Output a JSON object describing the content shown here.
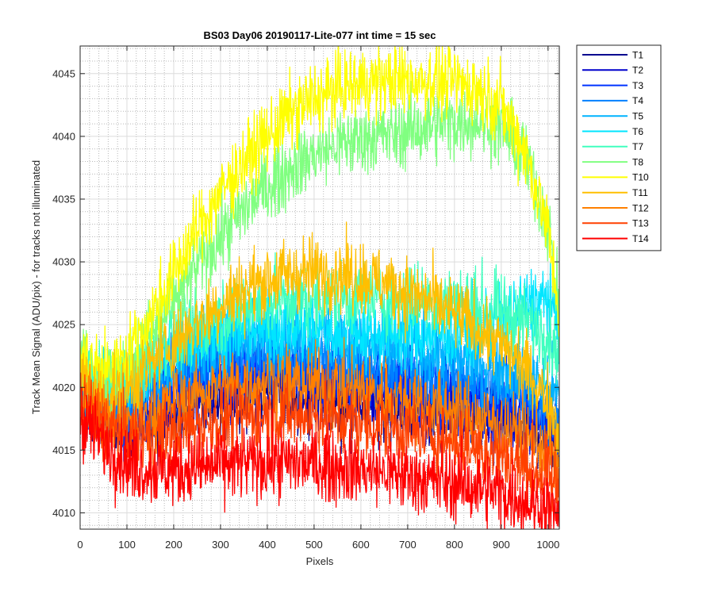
{
  "chart_data": {
    "type": "line",
    "title": "BS03 Day06 20190117-Lite-077 int time = 15 sec",
    "xlabel": "Pixels",
    "ylabel": "Track Mean Signal (ADU/pix) - for tracks not illuminated",
    "xlim": [
      0,
      1024
    ],
    "ylim": [
      4008.7,
      4047.2
    ],
    "xticks": [
      0,
      100,
      200,
      300,
      400,
      500,
      600,
      700,
      800,
      900,
      1000
    ],
    "yticks": [
      4010,
      4015,
      4020,
      4025,
      4030,
      4035,
      4040,
      4045
    ],
    "grid": true,
    "legend_position": "outside-top-right",
    "x_profile": [
      0,
      50,
      100,
      150,
      200,
      250,
      300,
      350,
      400,
      450,
      500,
      550,
      600,
      650,
      700,
      750,
      800,
      850,
      900,
      950,
      1000,
      1024
    ],
    "series": [
      {
        "name": "T1",
        "color": "#00008f",
        "noise": 2.6,
        "values": [
          4019.5,
          4017.8,
          4016.9,
          4017.2,
          4017.9,
          4018.6,
          4019.2,
          4019.5,
          4019.5,
          4019.4,
          4019.2,
          4019.0,
          4018.8,
          4018.6,
          4018.4,
          4018.2,
          4018.0,
          4017.7,
          4017.3,
          4016.8,
          4016.0,
          4015.2
        ]
      },
      {
        "name": "T2",
        "color": "#0000cc",
        "noise": 2.6,
        "values": [
          4019.8,
          4018.0,
          4017.3,
          4018.0,
          4019.0,
          4019.8,
          4020.3,
          4020.5,
          4020.5,
          4020.3,
          4020.1,
          4019.9,
          4019.7,
          4019.5,
          4019.2,
          4019.0,
          4018.7,
          4018.4,
          4018.0,
          4017.4,
          4016.6,
          4015.8
        ]
      },
      {
        "name": "T3",
        "color": "#0033ff",
        "noise": 2.6,
        "values": [
          4020.0,
          4018.3,
          4017.8,
          4019.0,
          4020.2,
          4021.0,
          4021.4,
          4021.6,
          4021.6,
          4021.4,
          4021.2,
          4021.0,
          4020.8,
          4020.5,
          4020.2,
          4019.9,
          4019.6,
          4019.3,
          4018.9,
          4018.2,
          4017.3,
          4016.5
        ]
      },
      {
        "name": "T4",
        "color": "#0080ff",
        "noise": 2.6,
        "values": [
          4020.3,
          4018.8,
          4018.5,
          4019.8,
          4021.0,
          4021.8,
          4022.3,
          4022.5,
          4022.5,
          4022.4,
          4022.2,
          4022.0,
          4021.8,
          4021.6,
          4021.3,
          4021.0,
          4020.7,
          4020.4,
          4020.0,
          4019.4,
          4018.5,
          4017.7
        ]
      },
      {
        "name": "T5",
        "color": "#00b3ff",
        "noise": 2.6,
        "values": [
          4020.6,
          4019.3,
          4019.5,
          4021.0,
          4022.3,
          4023.2,
          4023.8,
          4024.1,
          4024.2,
          4024.1,
          4023.9,
          4023.7,
          4023.5,
          4023.3,
          4023.0,
          4022.7,
          4022.4,
          4022.1,
          4021.7,
          4021.0,
          4020.0,
          4019.0
        ]
      },
      {
        "name": "T6",
        "color": "#00e6ff",
        "noise": 2.6,
        "values": [
          4021.0,
          4020.0,
          4020.3,
          4021.8,
          4023.0,
          4023.9,
          4024.4,
          4024.7,
          4024.8,
          4024.8,
          4024.7,
          4024.6,
          4024.5,
          4024.4,
          4024.3,
          4024.3,
          4024.4,
          4024.8,
          4025.5,
          4026.5,
          4027.0,
          4025.0
        ]
      },
      {
        "name": "T7",
        "color": "#40ffbf",
        "noise": 2.6,
        "values": [
          4021.5,
          4020.3,
          4020.8,
          4022.5,
          4024.0,
          4025.0,
          4025.8,
          4026.4,
          4026.8,
          4027.0,
          4027.1,
          4027.1,
          4027.1,
          4027.0,
          4027.0,
          4026.9,
          4026.8,
          4026.5,
          4026.0,
          4025.3,
          4024.2,
          4022.5
        ]
      },
      {
        "name": "T8",
        "color": "#80ff80",
        "noise": 2.6,
        "values": [
          4022.0,
          4020.8,
          4021.5,
          4024.0,
          4026.8,
          4029.5,
          4032.0,
          4034.2,
          4036.0,
          4037.5,
          4038.6,
          4039.3,
          4039.8,
          4040.1,
          4040.4,
          4040.8,
          4041.2,
          4041.3,
          4040.7,
          4038.5,
          4033.0,
          4025.5
        ]
      },
      {
        "name": "T10",
        "color": "#ffff00",
        "noise": 2.6,
        "values": [
          4022.5,
          4021.2,
          4022.5,
          4025.5,
          4029.0,
          4032.5,
          4035.5,
          4038.0,
          4040.0,
          4041.8,
          4043.0,
          4043.8,
          4044.2,
          4044.4,
          4044.5,
          4044.5,
          4044.3,
          4043.8,
          4042.5,
          4039.0,
          4032.5,
          4026.0
        ]
      },
      {
        "name": "T11",
        "color": "#ffbf00",
        "noise": 2.6,
        "values": [
          4020.5,
          4019.0,
          4019.8,
          4021.8,
          4023.6,
          4025.2,
          4026.6,
          4027.8,
          4028.6,
          4029.0,
          4029.2,
          4029.1,
          4028.8,
          4028.3,
          4027.6,
          4026.8,
          4025.8,
          4024.7,
          4023.3,
          4021.6,
          4019.0,
          4016.5
        ]
      },
      {
        "name": "T12",
        "color": "#ff8000",
        "noise": 2.6,
        "values": [
          4019.3,
          4017.5,
          4017.0,
          4017.8,
          4018.7,
          4019.4,
          4019.9,
          4020.2,
          4020.3,
          4020.3,
          4020.2,
          4020.0,
          4019.7,
          4019.4,
          4019.0,
          4018.6,
          4018.1,
          4017.6,
          4017.0,
          4016.2,
          4015.0,
          4013.8
        ]
      },
      {
        "name": "T13",
        "color": "#ff4000",
        "noise": 2.6,
        "values": [
          4019.0,
          4017.0,
          4016.0,
          4016.0,
          4016.5,
          4017.0,
          4017.4,
          4017.7,
          4017.8,
          4017.8,
          4017.7,
          4017.5,
          4017.2,
          4016.9,
          4016.5,
          4016.1,
          4015.7,
          4015.2,
          4014.6,
          4013.8,
          4012.8,
          4012.0
        ]
      },
      {
        "name": "T14",
        "color": "#ff0000",
        "noise": 2.6,
        "values": [
          4017.8,
          4015.5,
          4014.0,
          4013.4,
          4013.4,
          4013.6,
          4013.8,
          4013.9,
          4014.0,
          4014.0,
          4013.9,
          4013.7,
          4013.5,
          4013.2,
          4012.9,
          4012.6,
          4012.3,
          4012.0,
          4011.6,
          4011.0,
          4010.3,
          4009.8
        ]
      }
    ]
  }
}
